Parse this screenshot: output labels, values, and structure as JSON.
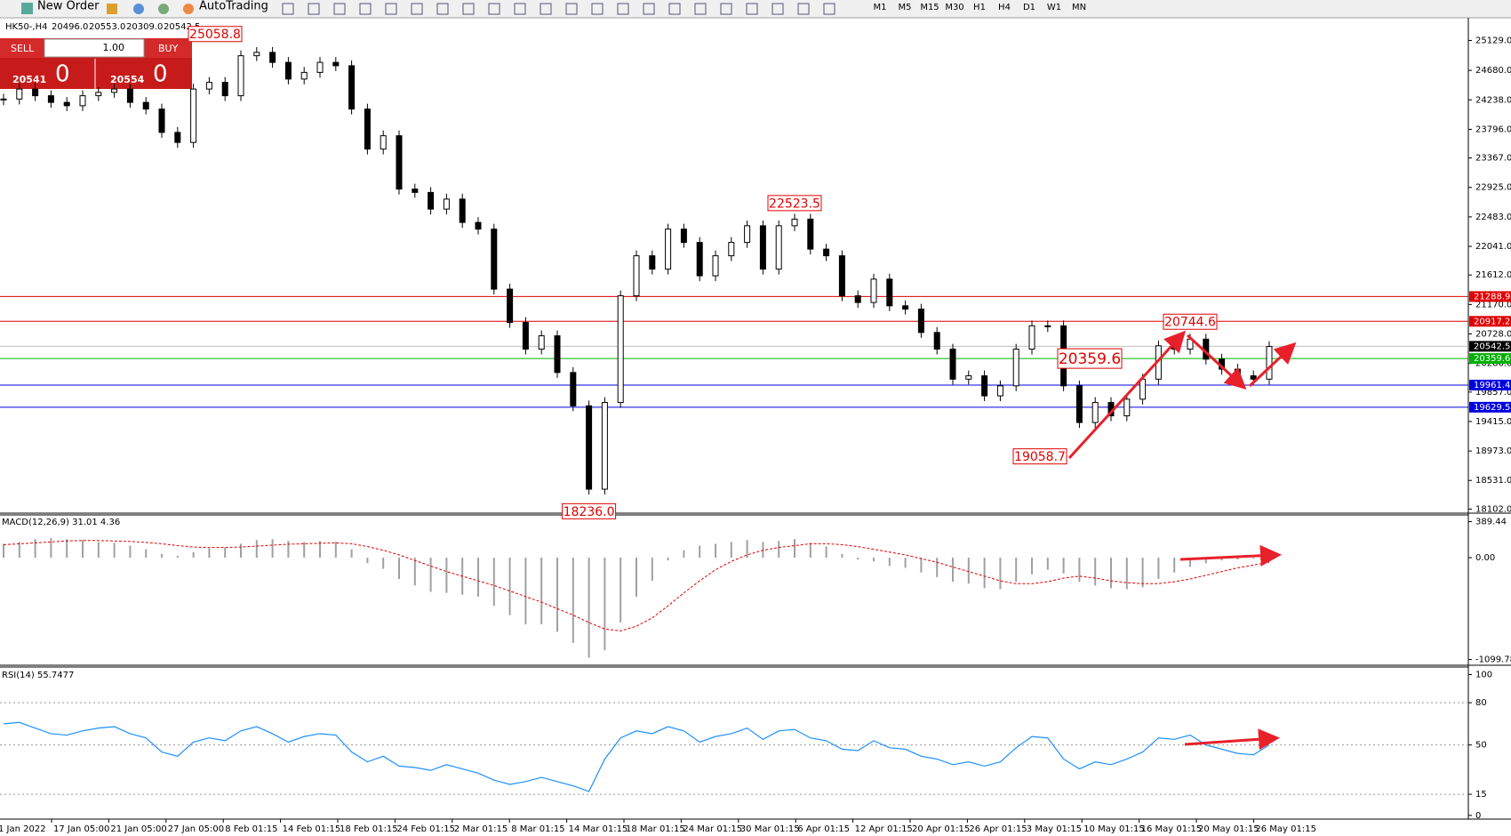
{
  "toolbar": {
    "new_order": "New Order",
    "auto_trading": "AutoTrading",
    "timeframes": [
      "M1",
      "M5",
      "M15",
      "M30",
      "H1",
      "H4",
      "D1",
      "W1",
      "MN"
    ]
  },
  "trade_panel": {
    "sell": "SELL",
    "lot": "1.00",
    "buy": "BUY",
    "sell_price": "20541",
    "sell_pips": "0",
    "buy_price": "20554",
    "buy_pips": "0"
  },
  "chart_header": {
    "symbol": "HK50-,H4",
    "open": "20496.0",
    "high": "20553.0",
    "low": "20309.0",
    "close": "20542.5"
  },
  "time_axis": {
    "labels": [
      "1 Jan 2022",
      "17 Jan 05:00",
      "21 Jan 05:00",
      "27 Jan 05:00",
      "8 Feb 01:15",
      "14 Feb 01:15",
      "18 Feb 01:15",
      "24 Feb 01:15",
      "2 Mar 01:15",
      "8 Mar 01:15",
      "14 Mar 01:15",
      "18 Mar 01:15",
      "24 Mar 01:15",
      "30 Mar 01:15",
      "6 Apr 01:15",
      "12 Apr 01:15",
      "20 Apr 01:15",
      "26 Apr 01:15",
      "3 May 01:15",
      "10 May 01:15",
      "16 May 01:15",
      "20 May 01:15",
      "26 May 01:15"
    ]
  },
  "chart_data": [
    {
      "type": "candlestick",
      "values": [
        24250,
        24400,
        24300,
        24200,
        24150,
        24300,
        24350,
        24400,
        24200,
        24100,
        23750,
        23600,
        24400,
        24500,
        24300,
        24900,
        24950,
        24800,
        24550,
        24650,
        24800,
        24750,
        24100,
        23500,
        23700,
        22900,
        22850,
        22600,
        22750,
        22400,
        22300,
        21400,
        20900,
        20500,
        20700,
        20150,
        19650,
        18400,
        19700,
        21300,
        21900,
        21700,
        22300,
        22100,
        21600,
        21900,
        22100,
        22350,
        21700,
        22350,
        22450,
        22000,
        21900,
        21300,
        21200,
        21550,
        21150,
        21100,
        20750,
        20500,
        20050,
        20100,
        19800,
        19950,
        20500,
        20850,
        20850,
        19950,
        19400,
        19700,
        19500,
        19750,
        20050,
        20550,
        20500,
        20650,
        20350,
        20200,
        20100,
        20050,
        20540
      ],
      "ylim": [
        18054,
        25442
      ],
      "yticks": [
        {
          "value": 25129,
          "label": "25129.0"
        },
        {
          "value": 24680,
          "label": "24680.0"
        },
        {
          "value": 24238,
          "label": "24238.0"
        },
        {
          "value": 23796,
          "label": "23796.0"
        },
        {
          "value": 23367,
          "label": "23367.0"
        },
        {
          "value": 22925,
          "label": "22925.0"
        },
        {
          "value": 22483,
          "label": "22483.0"
        },
        {
          "value": 22041,
          "label": "22041.0"
        },
        {
          "value": 21612,
          "label": "21612.0"
        },
        {
          "value": 21170,
          "label": "21170.0"
        },
        {
          "value": 20728,
          "label": "20728.0"
        },
        {
          "value": 20286,
          "label": "20286.0"
        },
        {
          "value": 19857,
          "label": "19857.0"
        },
        {
          "value": 19415,
          "label": "19415.0"
        },
        {
          "value": 18973,
          "label": "18973.0"
        },
        {
          "value": 18531,
          "label": "18531.0"
        },
        {
          "value": 18102,
          "label": "18102.0"
        }
      ],
      "levels": [
        {
          "value": 21288.9,
          "color": "#e00000"
        },
        {
          "value": 20917.2,
          "color": "#e00000"
        },
        {
          "value": 20542.5,
          "color": "#000000"
        },
        {
          "value": 20359.6,
          "color": "#00b000"
        },
        {
          "value": 19961.4,
          "color": "#0000e0"
        },
        {
          "value": 19629.5,
          "color": "#0000e0"
        }
      ],
      "annotations": [
        {
          "value": 25058.8,
          "label": "25058.8"
        },
        {
          "value": 22523.5,
          "label": "22523.5"
        },
        {
          "value": 20744.6,
          "label": "20744.6"
        },
        {
          "value": 20359.6,
          "label": "20359.6"
        },
        {
          "value": 19058.7,
          "label": "19058.7"
        },
        {
          "value": 18236,
          "label": "18236.0"
        }
      ]
    },
    {
      "type": "macd",
      "title": "MACD(12,26,9) 31.01 4.36",
      "color": "#a0a0a0",
      "signal_color": "#e00000",
      "values": [
        150,
        170,
        200,
        210,
        200,
        190,
        170,
        160,
        130,
        90,
        40,
        20,
        60,
        100,
        110,
        150,
        190,
        200,
        180,
        170,
        180,
        170,
        90,
        -60,
        -120,
        -230,
        -300,
        -370,
        -380,
        -400,
        -420,
        -520,
        -620,
        -720,
        -720,
        -800,
        -920,
        -1080,
        -1000,
        -700,
        -420,
        -250,
        -30,
        80,
        130,
        150,
        170,
        190,
        170,
        180,
        200,
        160,
        120,
        40,
        -20,
        -40,
        -90,
        -110,
        -160,
        -210,
        -260,
        -280,
        -330,
        -340,
        -260,
        -180,
        -130,
        -170,
        -260,
        -300,
        -330,
        -340,
        -320,
        -230,
        -160,
        -100,
        -60,
        -30,
        -20,
        -10,
        30
      ],
      "signal": [
        140,
        150,
        160,
        170,
        180,
        185,
        185,
        180,
        175,
        165,
        150,
        130,
        115,
        110,
        110,
        115,
        125,
        135,
        145,
        150,
        155,
        160,
        150,
        120,
        80,
        30,
        -30,
        -90,
        -150,
        -200,
        -250,
        -300,
        -360,
        -420,
        -480,
        -550,
        -620,
        -700,
        -770,
        -790,
        -740,
        -650,
        -520,
        -380,
        -250,
        -130,
        -40,
        30,
        80,
        110,
        130,
        150,
        150,
        140,
        120,
        90,
        60,
        30,
        -10,
        -50,
        -100,
        -150,
        -200,
        -250,
        -280,
        -280,
        -260,
        -220,
        -200,
        -220,
        -250,
        -270,
        -280,
        -280,
        -260,
        -230,
        -190,
        -150,
        -110,
        -80,
        -50
      ],
      "ylim": [
        -1151.5,
        451.5
      ],
      "yticks": [
        389.44,
        {
          "value": 0,
          "label": "0.00"
        },
        -1099.78
      ]
    },
    {
      "type": "line",
      "title": "RSI(14) 55.7477",
      "color": "#1e90ff",
      "values": [
        65,
        66,
        62,
        58,
        57,
        60,
        62,
        63,
        58,
        55,
        45,
        42,
        52,
        55,
        53,
        60,
        63,
        58,
        52,
        56,
        58,
        57,
        45,
        38,
        42,
        35,
        34,
        32,
        36,
        33,
        30,
        25,
        22,
        24,
        27,
        24,
        21,
        17,
        40,
        55,
        60,
        58,
        63,
        60,
        52,
        56,
        58,
        62,
        54,
        60,
        61,
        55,
        53,
        47,
        46,
        53,
        48,
        47,
        42,
        40,
        36,
        38,
        35,
        38,
        48,
        56,
        55,
        40,
        33,
        38,
        36,
        40,
        45,
        55,
        54,
        57,
        50,
        47,
        44,
        43,
        50
      ],
      "ylim": [
        -2,
        104.7
      ],
      "yticks": [
        100,
        80,
        50,
        15,
        0
      ],
      "levels": [
        80,
        50,
        15
      ]
    }
  ]
}
